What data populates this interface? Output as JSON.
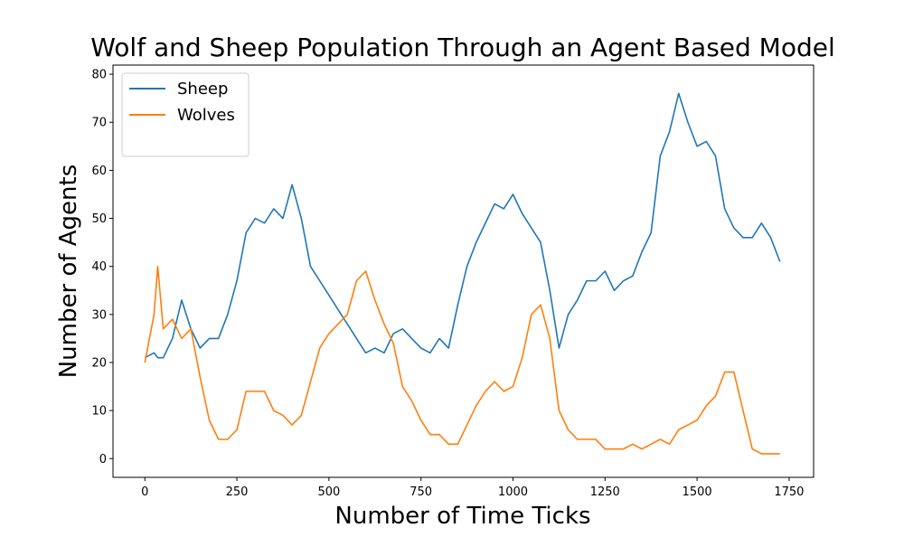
{
  "chart_data": {
    "type": "line",
    "title": "Wolf and Sheep Population Through an Agent Based Model",
    "x_label": "Number of Time Ticks",
    "y_label": "Number of Agents",
    "x": [
      0,
      25,
      35,
      50,
      75,
      100,
      125,
      150,
      175,
      200,
      225,
      250,
      275,
      300,
      325,
      350,
      375,
      400,
      425,
      450,
      475,
      500,
      525,
      550,
      575,
      600,
      625,
      650,
      675,
      700,
      725,
      750,
      775,
      800,
      825,
      850,
      875,
      900,
      925,
      950,
      975,
      1000,
      1025,
      1050,
      1075,
      1100,
      1125,
      1150,
      1175,
      1200,
      1225,
      1250,
      1275,
      1300,
      1325,
      1350,
      1375,
      1400,
      1425,
      1450,
      1475,
      1500,
      1525,
      1550,
      1575,
      1600,
      1625,
      1650,
      1675,
      1700,
      1725
    ],
    "series": [
      {
        "name": "Sheep",
        "color": "#1f77b4",
        "values": [
          21,
          22,
          21,
          21,
          25,
          33,
          27,
          23,
          25,
          25,
          30,
          37,
          47,
          50,
          49,
          52,
          50,
          57,
          50,
          40,
          37,
          34,
          31,
          28,
          25,
          22,
          23,
          22,
          26,
          27,
          25,
          23,
          22,
          25,
          23,
          32,
          40,
          45,
          49,
          53,
          52,
          55,
          51,
          48,
          45,
          35,
          23,
          30,
          33,
          37,
          37,
          39,
          35,
          37,
          38,
          43,
          47,
          63,
          68,
          76,
          70,
          65,
          66,
          63,
          52,
          48,
          46,
          46,
          49,
          46,
          41
        ]
      },
      {
        "name": "Wolves",
        "color": "#ff7f0e",
        "values": [
          20,
          30,
          40,
          27,
          29,
          25,
          27,
          17,
          8,
          4,
          4,
          6,
          14,
          14,
          14,
          10,
          9,
          7,
          9,
          16,
          23,
          26,
          28,
          30,
          37,
          39,
          33,
          28,
          24,
          15,
          12,
          8,
          5,
          5,
          3,
          3,
          7,
          11,
          14,
          16,
          14,
          15,
          21,
          30,
          32,
          25,
          10,
          6,
          4,
          4,
          4,
          2,
          2,
          2,
          3,
          2,
          3,
          4,
          3,
          6,
          7,
          8,
          11,
          13,
          18,
          18,
          10,
          2,
          1,
          1,
          1
        ]
      }
    ],
    "xlim": [
      -86.5,
      1816.5
    ],
    "ylim": [
      -3.9,
      81.9
    ],
    "xticks": [
      0,
      250,
      500,
      750,
      1000,
      1250,
      1500,
      1750
    ],
    "yticks": [
      0,
      10,
      20,
      30,
      40,
      50,
      60,
      70,
      80
    ],
    "legend": "upper left",
    "grid": false
  }
}
